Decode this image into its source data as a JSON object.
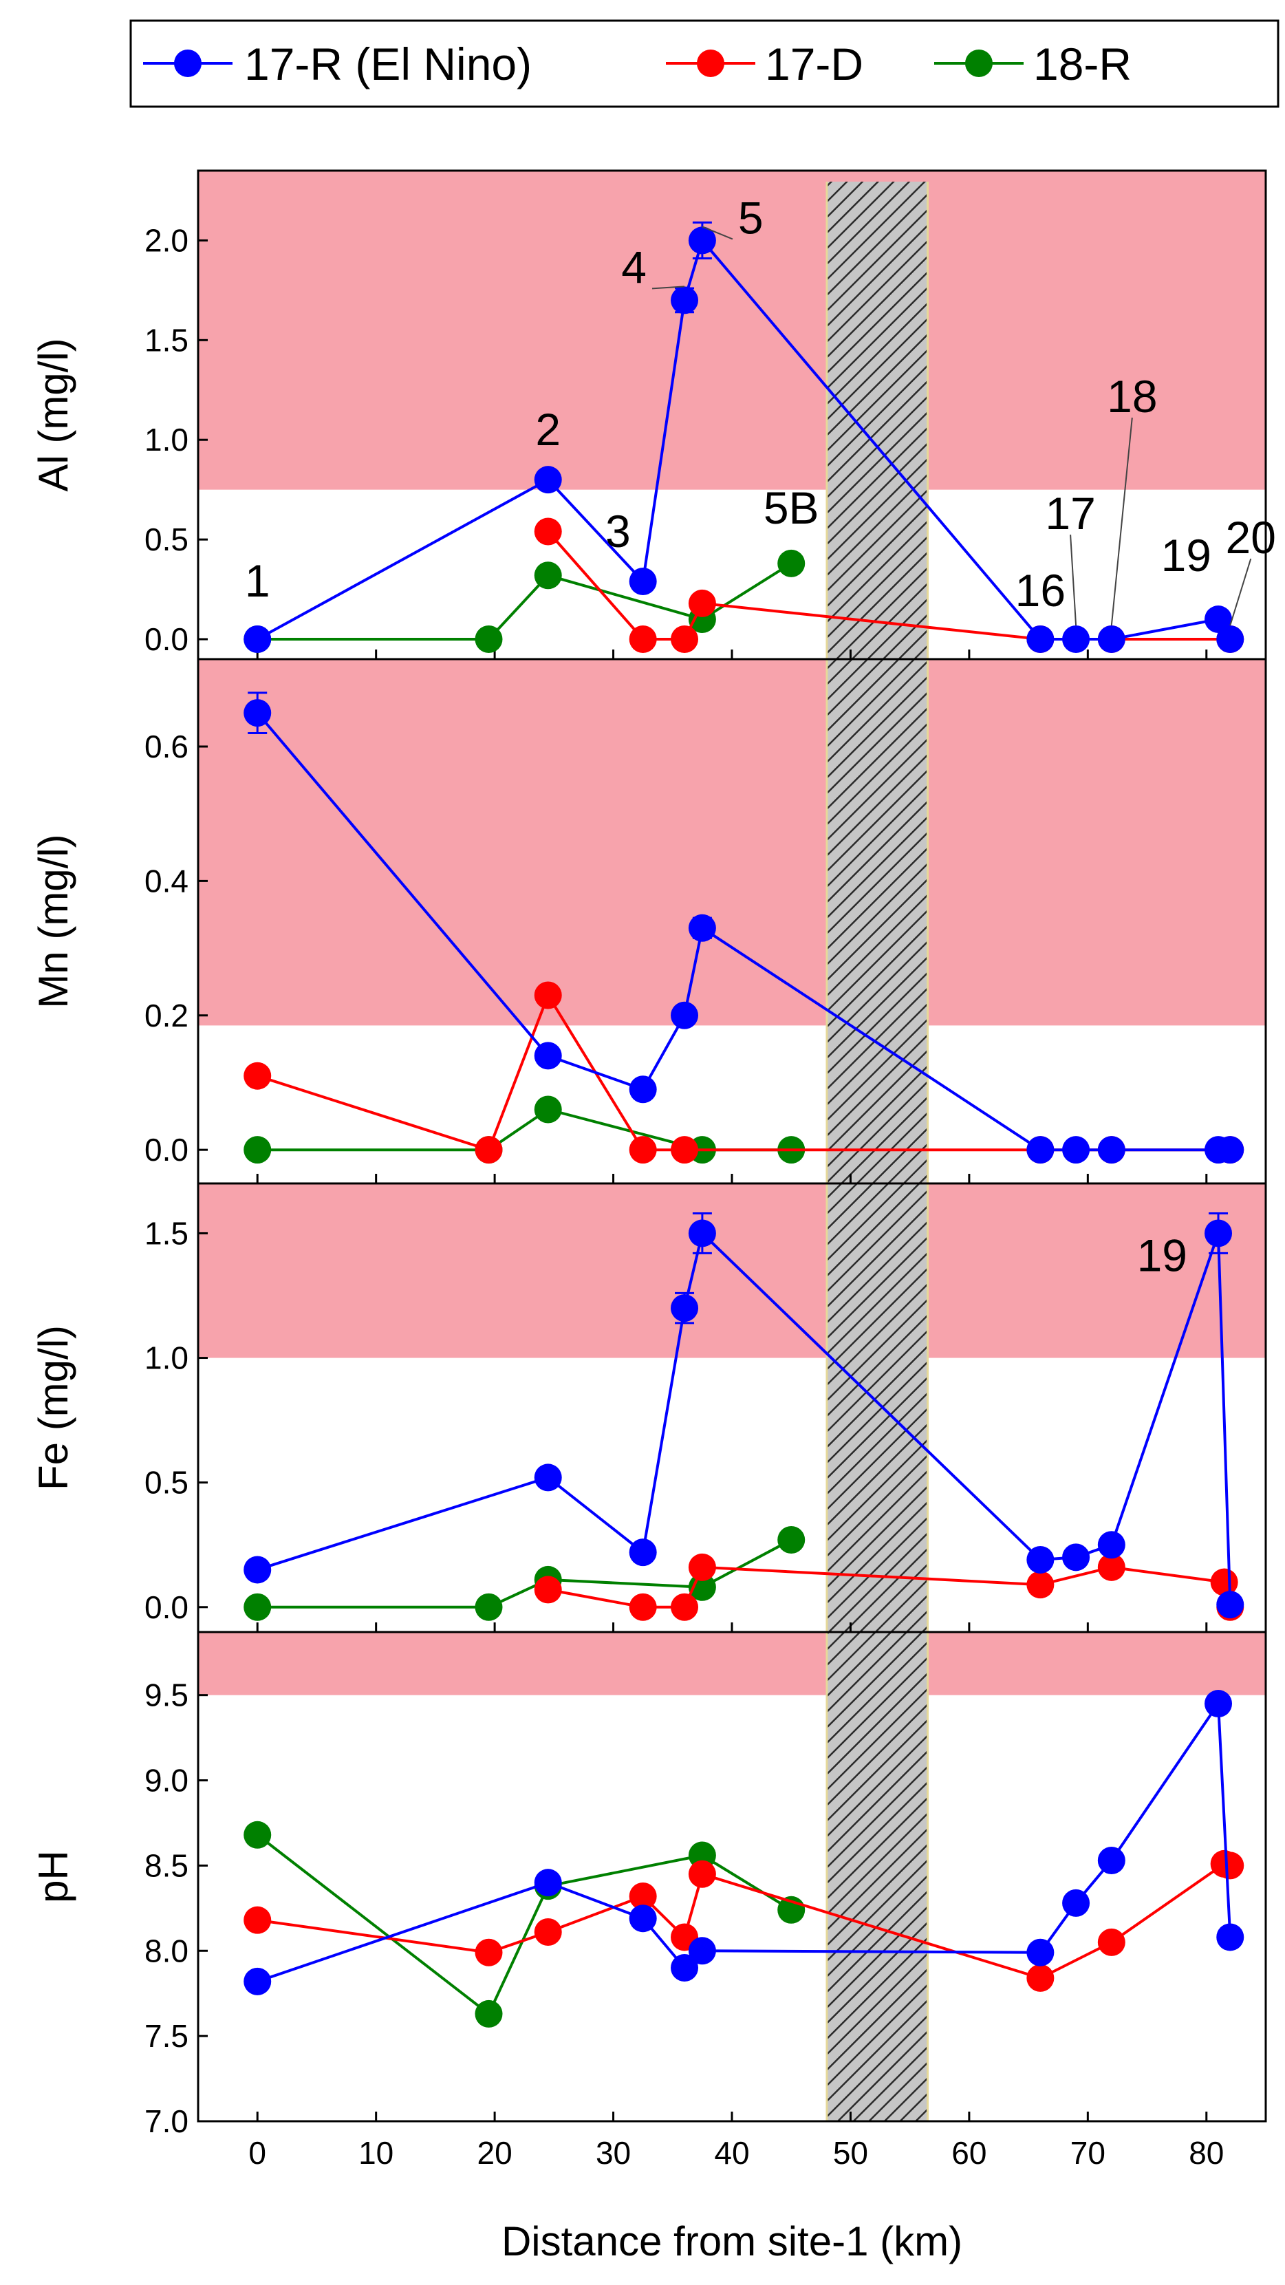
{
  "chart_data": {
    "type": "line",
    "layout": "four vertically stacked panels sharing one x-axis",
    "x_axis": {
      "label": "Distance from site-1 (km)",
      "range": [
        -5,
        85
      ],
      "ticks": [
        0,
        10,
        20,
        30,
        40,
        50,
        60,
        70,
        80
      ]
    },
    "legend": {
      "position": "top",
      "entries": [
        {
          "name": "17-R (El Nino)",
          "color": "#0000ff"
        },
        {
          "name": "17-D",
          "color": "#ff0000"
        },
        {
          "name": "18-R",
          "color": "#008000"
        }
      ]
    },
    "hatched_band": {
      "x_range": [
        48,
        56.5
      ],
      "description": "hatched region spanning all panels"
    },
    "panels": [
      {
        "id": "al",
        "ylabel": "Al (mg/l)",
        "ylim": [
          -0.1,
          2.35
        ],
        "yticks": [
          "0.0",
          "0.5",
          "1.0",
          "1.5",
          "2.0"
        ],
        "shaded_above": 0.75,
        "series": [
          {
            "name": "17-R (El Nino)",
            "color": "#0000ff",
            "points": [
              [
                0,
                0.0
              ],
              [
                24.5,
                0.8
              ],
              [
                32.5,
                0.29
              ],
              [
                36,
                1.7
              ],
              [
                37.5,
                2.0
              ],
              [
                66,
                0.0
              ],
              [
                69,
                0.0
              ],
              [
                72,
                0.0
              ],
              [
                81,
                0.1
              ],
              [
                82,
                0.0
              ]
            ],
            "errors": [
              0,
              0.02,
              0.02,
              0.06,
              0.09,
              0,
              0,
              0,
              0.02,
              0
            ]
          },
          {
            "name": "17-D",
            "color": "#ff0000",
            "points": [
              [
                24.5,
                0.54
              ],
              [
                32.5,
                0.0
              ],
              [
                36,
                0.0
              ],
              [
                37.5,
                0.18
              ],
              [
                66,
                0.0
              ],
              [
                72,
                0.0
              ],
              [
                82,
                0.0
              ]
            ]
          },
          {
            "name": "18-R",
            "color": "#008000",
            "points": [
              [
                0,
                0.0
              ],
              [
                19.5,
                0.0
              ],
              [
                24.5,
                0.32
              ],
              [
                37.5,
                0.1
              ],
              [
                45,
                0.38
              ]
            ]
          }
        ],
        "annotations": [
          {
            "text": "1",
            "x": 0,
            "y": 0.0
          },
          {
            "text": "2",
            "x": 24.5,
            "y": 0.8
          },
          {
            "text": "3",
            "x": 32.5,
            "y": 0.29
          },
          {
            "text": "4",
            "x": 36,
            "y": 1.7
          },
          {
            "text": "5",
            "x": 37.5,
            "y": 2.0
          },
          {
            "text": "5B",
            "x": 45,
            "y": 0.38
          },
          {
            "text": "16",
            "x": 66,
            "y": 0.0
          },
          {
            "text": "17",
            "x": 69,
            "y": 0.0
          },
          {
            "text": "18",
            "x": 72,
            "y": 0.0
          },
          {
            "text": "19",
            "x": 81,
            "y": 0.1
          },
          {
            "text": "20",
            "x": 82,
            "y": 0.0
          }
        ]
      },
      {
        "id": "mn",
        "ylabel": "Mn (mg/l)",
        "ylim": [
          -0.05,
          0.73
        ],
        "yticks": [
          "0.0",
          "0.2",
          "0.4",
          "0.6"
        ],
        "shaded_above": 0.185,
        "series": [
          {
            "name": "17-R (El Nino)",
            "color": "#0000ff",
            "points": [
              [
                0,
                0.65
              ],
              [
                24.5,
                0.14
              ],
              [
                32.5,
                0.09
              ],
              [
                36,
                0.2
              ],
              [
                37.5,
                0.33
              ],
              [
                66,
                0.0
              ],
              [
                69,
                0.0
              ],
              [
                72,
                0.0
              ],
              [
                81,
                0.0
              ],
              [
                82,
                0.0
              ]
            ],
            "errors": [
              0.03,
              0.01,
              0.005,
              0.01,
              0.015,
              0,
              0,
              0,
              0,
              0
            ]
          },
          {
            "name": "17-D",
            "color": "#ff0000",
            "points": [
              [
                0,
                0.11
              ],
              [
                19.5,
                0.0
              ],
              [
                24.5,
                0.23
              ],
              [
                32.5,
                0.0
              ],
              [
                36,
                0.0
              ],
              [
                66,
                0.0
              ],
              [
                72,
                0.0
              ],
              [
                82,
                0.0
              ]
            ]
          },
          {
            "name": "18-R",
            "color": "#008000",
            "points": [
              [
                0,
                0.0
              ],
              [
                19.5,
                0.0
              ],
              [
                24.5,
                0.06
              ],
              [
                37.5,
                0.0
              ],
              [
                45,
                0.0
              ]
            ]
          }
        ],
        "annotations": []
      },
      {
        "id": "fe",
        "ylabel": "Fe (mg/l)",
        "ylim": [
          -0.1,
          1.7
        ],
        "yticks": [
          "0.0",
          "0.5",
          "1.0",
          "1.5"
        ],
        "shaded_above": 1.0,
        "series": [
          {
            "name": "17-R (El Nino)",
            "color": "#0000ff",
            "points": [
              [
                0,
                0.15
              ],
              [
                24.5,
                0.52
              ],
              [
                32.5,
                0.22
              ],
              [
                36,
                1.2
              ],
              [
                37.5,
                1.5
              ],
              [
                66,
                0.19
              ],
              [
                69,
                0.2
              ],
              [
                72,
                0.25
              ],
              [
                81,
                1.5
              ],
              [
                82,
                0.01
              ]
            ],
            "errors": [
              0,
              0.02,
              0.02,
              0.06,
              0.08,
              0,
              0,
              0,
              0.08,
              0
            ]
          },
          {
            "name": "17-D",
            "color": "#ff0000",
            "points": [
              [
                24.5,
                0.07
              ],
              [
                32.5,
                0.0
              ],
              [
                36,
                0.0
              ],
              [
                37.5,
                0.16
              ],
              [
                66,
                0.09
              ],
              [
                72,
                0.16
              ],
              [
                81.5,
                0.1
              ],
              [
                82,
                0.0
              ]
            ]
          },
          {
            "name": "18-R",
            "color": "#008000",
            "points": [
              [
                0,
                0.0
              ],
              [
                19.5,
                0.0
              ],
              [
                24.5,
                0.11
              ],
              [
                37.5,
                0.08
              ],
              [
                45,
                0.27
              ]
            ]
          }
        ],
        "annotations": [
          {
            "text": "19",
            "x": 81,
            "y": 1.5
          }
        ]
      },
      {
        "id": "ph",
        "ylabel": "pH",
        "ylim": [
          7.0,
          9.87
        ],
        "yticks": [
          "7.0",
          "7.5",
          "8.0",
          "8.5",
          "9.0",
          "9.5"
        ],
        "shaded_above": 9.5,
        "series": [
          {
            "name": "17-R (El Nino)",
            "color": "#0000ff",
            "points": [
              [
                0,
                7.82
              ],
              [
                24.5,
                8.4
              ],
              [
                32.5,
                8.19
              ],
              [
                36,
                7.9
              ],
              [
                37.5,
                8.0
              ],
              [
                66,
                7.99
              ],
              [
                69,
                8.28
              ],
              [
                72,
                8.53
              ],
              [
                81,
                9.45
              ],
              [
                82,
                8.08
              ]
            ]
          },
          {
            "name": "17-D",
            "color": "#ff0000",
            "points": [
              [
                0,
                8.18
              ],
              [
                19.5,
                7.99
              ],
              [
                24.5,
                8.11
              ],
              [
                32.5,
                8.32
              ],
              [
                36,
                8.08
              ],
              [
                37.5,
                8.45
              ],
              [
                66,
                7.84
              ],
              [
                72,
                8.05
              ],
              [
                81.5,
                8.51
              ],
              [
                82,
                8.5
              ]
            ]
          },
          {
            "name": "18-R",
            "color": "#008000",
            "points": [
              [
                0,
                8.68
              ],
              [
                19.5,
                7.63
              ],
              [
                24.5,
                8.38
              ],
              [
                37.5,
                8.56
              ],
              [
                45,
                8.24
              ]
            ]
          }
        ],
        "annotations": []
      }
    ]
  }
}
